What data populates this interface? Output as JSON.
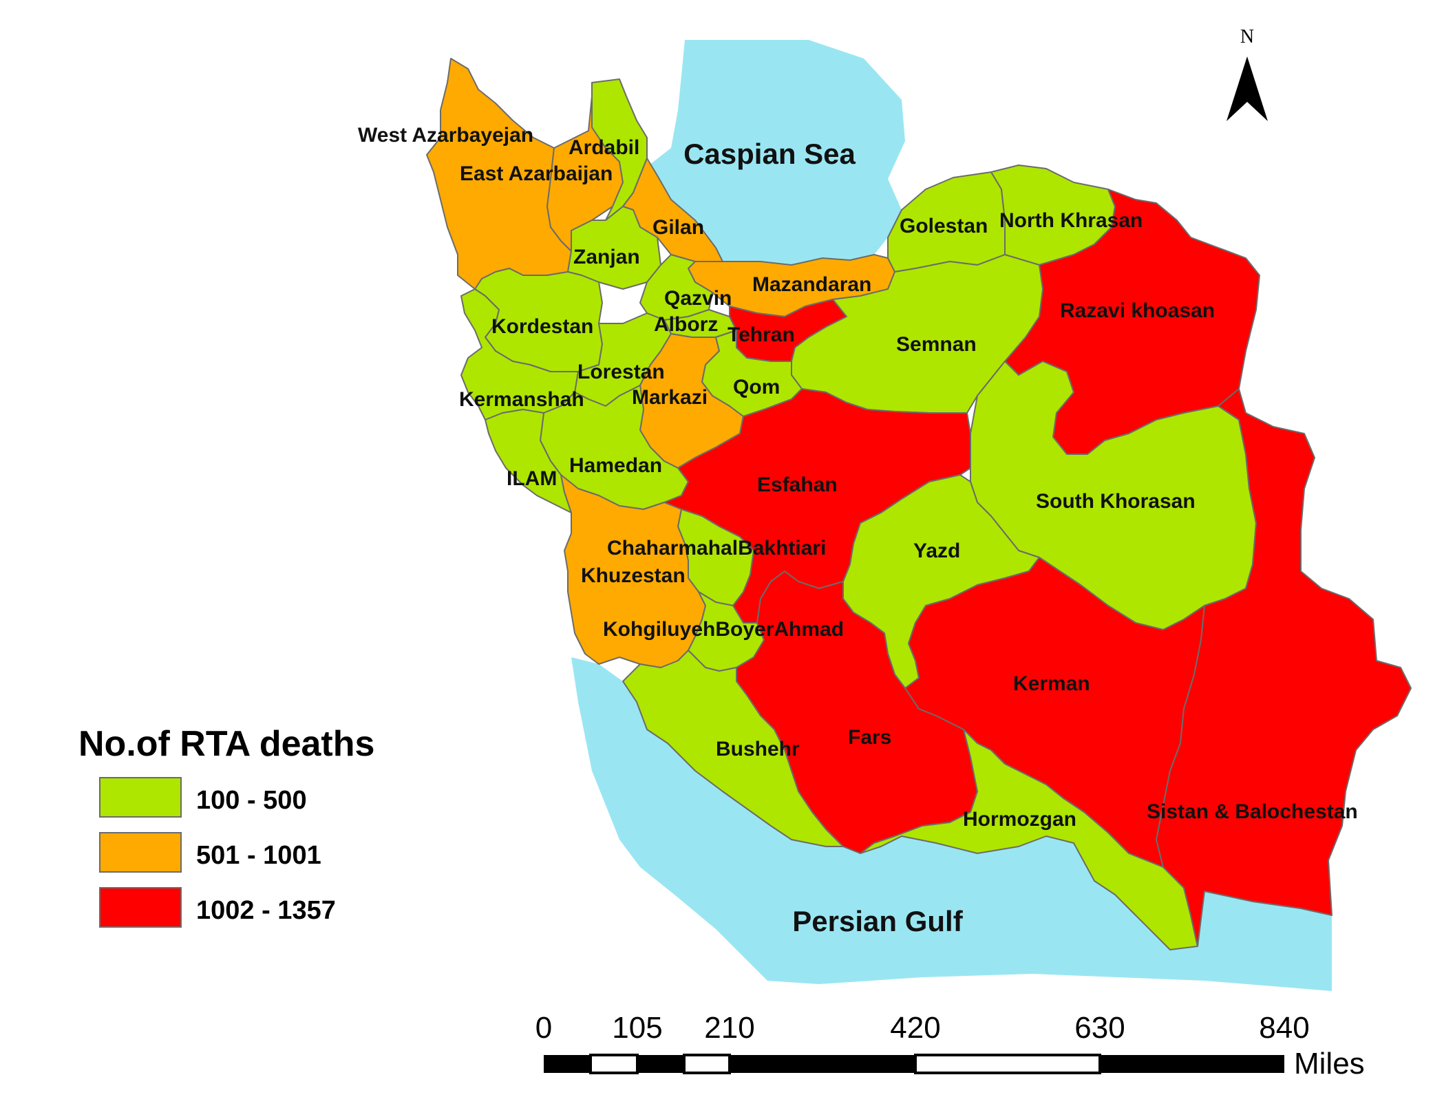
{
  "colors": {
    "low": "#aee600",
    "mid": "#ffaa00",
    "high": "#ff0000",
    "sea": "#99e6f2"
  },
  "seas": {
    "caspian": "Caspian Sea",
    "gulf": "Persian Gulf"
  },
  "legend": {
    "title": "No.of RTA deaths",
    "classes": [
      {
        "range": "100 - 500",
        "color": "#aee600"
      },
      {
        "range": "501 - 1001",
        "color": "#ffaa00"
      },
      {
        "range": "1002 - 1357",
        "color": "#ff0000"
      }
    ]
  },
  "north": "N",
  "scale": {
    "ticks": [
      "0",
      "105",
      "210",
      "420",
      "630",
      "840"
    ],
    "unit": "Miles"
  },
  "provinces": {
    "west_azarbayejan": {
      "label": "West Azarbayejan",
      "class": "501 - 1001"
    },
    "east_azarbaijan": {
      "label": "East Azarbaijan",
      "class": "501 - 1001"
    },
    "ardabil": {
      "label": "Ardabil",
      "class": "100 - 500"
    },
    "gilan": {
      "label": "Gilan",
      "class": "501 - 1001"
    },
    "zanjan": {
      "label": "Zanjan",
      "class": "100 - 500"
    },
    "mazandaran": {
      "label": "Mazandaran",
      "class": "501 - 1001"
    },
    "golestan": {
      "label": "Golestan",
      "class": "100 - 500"
    },
    "north_khrasan": {
      "label": "North Khrasan",
      "class": "100 - 500"
    },
    "razavi": {
      "label": "Razavi khoasan",
      "class": "1002 - 1357"
    },
    "qazvin": {
      "label": "Qazvin",
      "class": "100 - 500"
    },
    "alborz": {
      "label": "Alborz",
      "class": "100 - 500"
    },
    "tehran": {
      "label": "Tehran",
      "class": "1002 - 1357"
    },
    "kordestan": {
      "label": "Kordestan",
      "class": "100 - 500"
    },
    "semnan": {
      "label": "Semnan",
      "class": "100 - 500"
    },
    "lorestan": {
      "label": "Lorestan",
      "class": "100 - 500"
    },
    "markazi": {
      "label": "Markazi",
      "class": "501 - 1001"
    },
    "qom": {
      "label": "Qom",
      "class": "100 - 500"
    },
    "kermanshah": {
      "label": "Kermanshah",
      "class": "100 - 500"
    },
    "hamedan": {
      "label": "Hamedan",
      "class": "100 - 500"
    },
    "ilam": {
      "label": "ILAM",
      "class": "100 - 500"
    },
    "esfahan": {
      "label": "Esfahan",
      "class": "1002 - 1357"
    },
    "south_khorasan": {
      "label": "South Khorasan",
      "class": "100 - 500"
    },
    "chaharmahal": {
      "label": "ChaharmahalBakhtiari",
      "class": "100 - 500"
    },
    "yazd": {
      "label": "Yazd",
      "class": "100 - 500"
    },
    "khuzestan": {
      "label": "Khuzestan",
      "class": "501 - 1001"
    },
    "kohgiluyeh": {
      "label": "KohgiluyehBoyerAhmad",
      "class": "100 - 500"
    },
    "kerman": {
      "label": "Kerman",
      "class": "1002 - 1357"
    },
    "fars": {
      "label": "Fars",
      "class": "1002 - 1357"
    },
    "bushehr": {
      "label": "Bushehr",
      "class": "100 - 500"
    },
    "hormozgan": {
      "label": "Hormozgan",
      "class": "100 - 500"
    },
    "sistan": {
      "label": "Sistan & Balochestan",
      "class": "1002 - 1357"
    }
  }
}
